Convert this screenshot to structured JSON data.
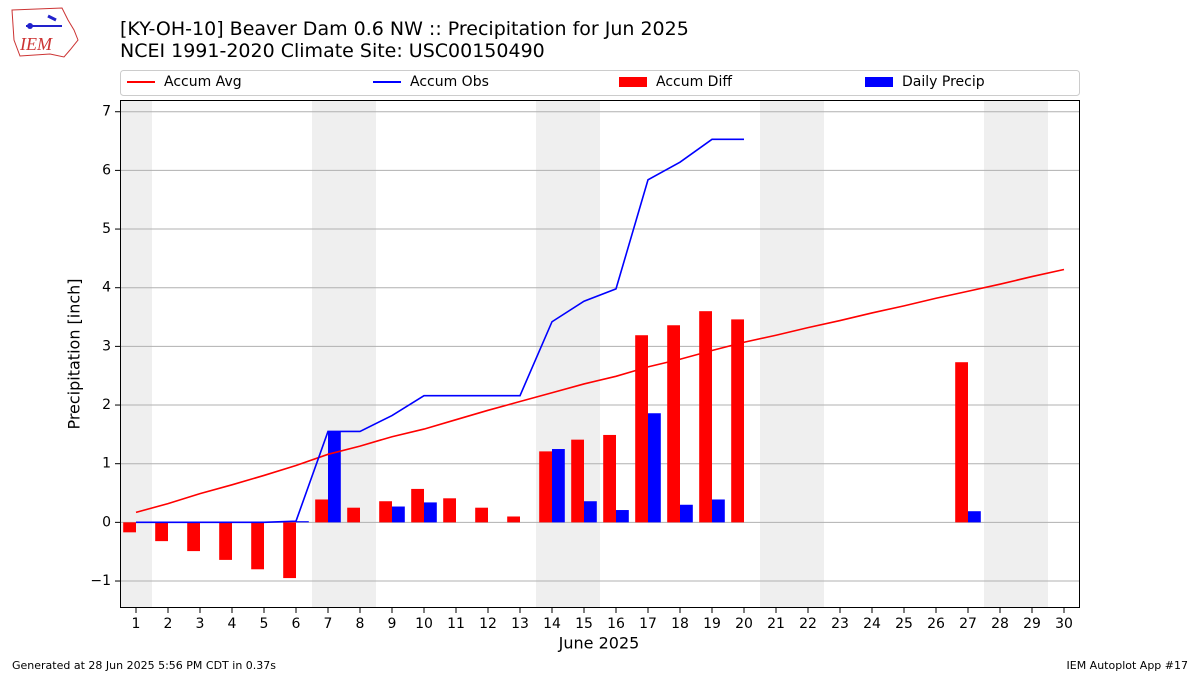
{
  "logo_text": "IEM",
  "chart_data": {
    "type": "bar",
    "title": "[KY-OH-10] Beaver Dam 0.6 NW :: Precipitation for Jun 2025",
    "subtitle": "NCEI 1991-2020 Climate Site: USC00150490",
    "xlabel": "June 2025",
    "ylabel": "Precipitation [inch]",
    "x": [
      1,
      2,
      3,
      4,
      5,
      6,
      7,
      8,
      9,
      10,
      11,
      12,
      13,
      14,
      15,
      16,
      17,
      18,
      19,
      20,
      21,
      22,
      23,
      24,
      25,
      26,
      27,
      28,
      29,
      30
    ],
    "series": [
      {
        "name": "Accum Avg",
        "type": "line",
        "color": "#ff0000",
        "values": [
          0.17,
          0.32,
          0.49,
          0.64,
          0.8,
          0.97,
          1.16,
          1.3,
          1.46,
          1.59,
          1.75,
          1.91,
          2.06,
          2.21,
          2.36,
          2.49,
          2.65,
          2.78,
          2.93,
          3.07,
          3.19,
          3.32,
          3.44,
          3.57,
          3.69,
          3.82,
          3.94,
          4.06,
          4.19,
          4.31
        ]
      },
      {
        "name": "Accum Obs",
        "type": "line",
        "color": "#0000ff",
        "values": [
          0,
          0,
          0,
          0,
          0,
          0.02,
          1.55,
          1.55,
          1.82,
          2.16,
          2.16,
          2.16,
          2.16,
          3.42,
          3.77,
          3.98,
          5.84,
          6.14,
          6.53,
          6.53,
          null,
          null,
          null,
          null,
          null,
          null,
          null,
          null,
          null,
          null
        ]
      },
      {
        "name": "Accum Diff",
        "type": "bar",
        "color": "#ff0000",
        "values": [
          -0.17,
          -0.32,
          -0.49,
          -0.64,
          -0.8,
          -0.95,
          0.39,
          0.25,
          0.36,
          0.57,
          0.41,
          0.25,
          0.1,
          1.21,
          1.41,
          1.49,
          3.19,
          3.36,
          3.6,
          3.46,
          null,
          null,
          null,
          null,
          null,
          null,
          2.73,
          null,
          null,
          null
        ]
      },
      {
        "name": "Daily Precip",
        "type": "bar",
        "color": "#0000ff",
        "values": [
          0,
          0,
          0,
          0,
          0,
          0.02,
          1.55,
          0,
          0.27,
          0.34,
          0,
          0,
          0,
          1.25,
          0.36,
          0.21,
          1.86,
          0.3,
          0.39,
          0,
          null,
          null,
          null,
          null,
          null,
          null,
          0.19,
          null,
          null,
          null
        ]
      }
    ],
    "shaded_days": [
      1,
      7,
      8,
      14,
      15,
      21,
      22,
      28,
      29
    ],
    "xlim": [
      0.5,
      30.5
    ],
    "ylim": [
      -1.46,
      7.2
    ],
    "xticks": [
      1,
      2,
      3,
      4,
      5,
      6,
      7,
      8,
      9,
      10,
      11,
      12,
      13,
      14,
      15,
      16,
      17,
      18,
      19,
      20,
      21,
      22,
      23,
      24,
      25,
      26,
      27,
      28,
      29,
      30
    ],
    "yticks": [
      {
        "value": -1,
        "label": "−1"
      },
      0,
      1,
      2,
      3,
      4,
      5,
      6,
      7
    ],
    "grid": true,
    "legend": "top",
    "footer_left": "Generated at 28 Jun 2025 5:56 PM CDT in 0.37s",
    "footer_right": "IEM Autoplot App #17"
  }
}
